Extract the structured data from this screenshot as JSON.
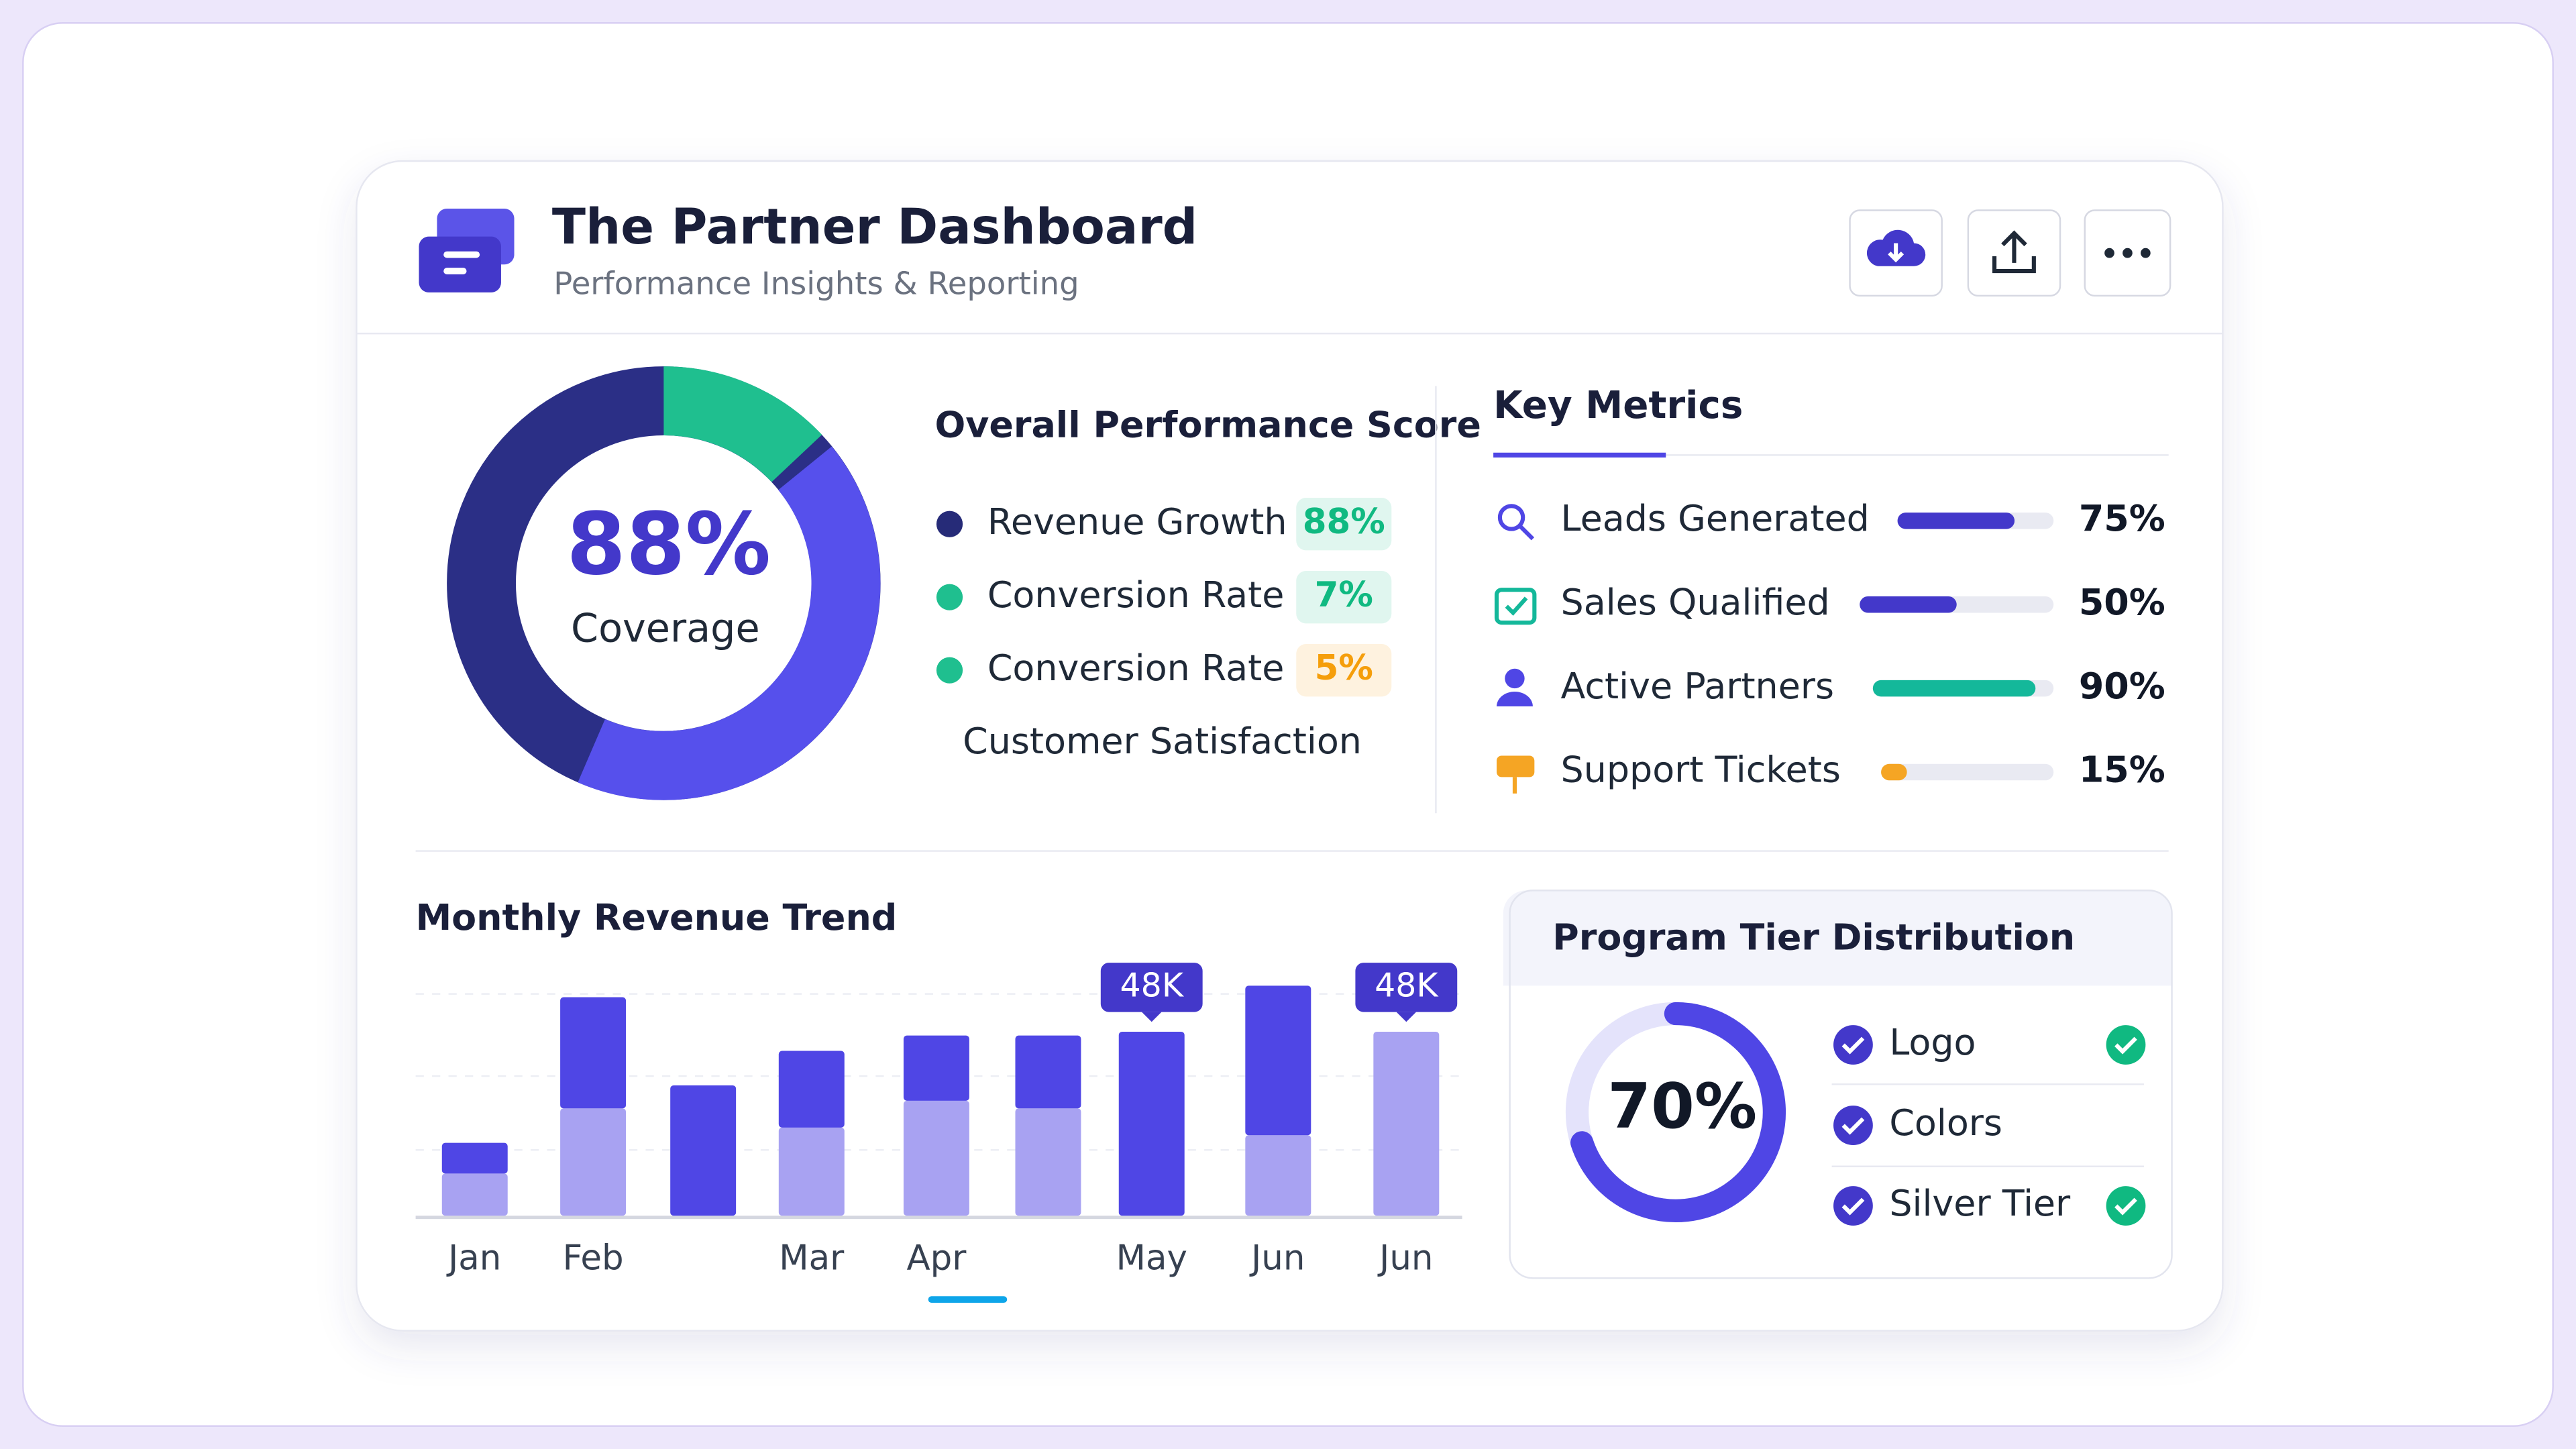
{
  "header": {
    "title": "The Partner Dashboard",
    "subtitle": "Performance Insights & Reporting"
  },
  "performance": {
    "center_value": "88%",
    "center_label": "Coverage",
    "title": "Overall Performance Score",
    "legend": [
      {
        "name": "Revenue Growth",
        "value": "88%",
        "color": "#262b78",
        "badge_color": "#10b981"
      },
      {
        "name": "Conversion Rate",
        "value": "7%",
        "color": "#1fbf8f",
        "badge_color": "#10b981"
      },
      {
        "name": "Conversion Rate",
        "value": "5%",
        "color": "#1fbf8f",
        "badge_color": "#f59e0b"
      },
      {
        "name": "Customer Satisfaction"
      }
    ]
  },
  "key_metrics": {
    "title": "Key Metrics",
    "items": [
      {
        "label": "Leads Generated",
        "value": 75,
        "value_label": "75%",
        "color": "#4338ca"
      },
      {
        "label": "Sales Qualified",
        "value": 50,
        "value_label": "50%",
        "color": "#4338ca"
      },
      {
        "label": "Active Partners",
        "value": 90,
        "value_label": "90%",
        "color": "#14b89a"
      },
      {
        "label": "Support Tickets",
        "value": 15,
        "value_label": "15%",
        "color": "#f5a524"
      }
    ]
  },
  "revenue_trend": {
    "type": "bar",
    "title": "Monthly Revenue Trend",
    "categories": [
      "Jan",
      "Feb",
      null,
      "Mar",
      "Apr",
      null,
      "May",
      "Jun",
      "Jun"
    ],
    "series": [
      {
        "color": "#a8a2f2",
        "values": [
          11,
          28,
          0,
          23,
          30,
          28,
          0,
          21,
          48
        ],
        "value_labels": [
          null,
          null,
          null,
          null,
          null,
          null,
          null,
          null,
          "48K"
        ]
      },
      {
        "color": "#4f46e5",
        "values": [
          8,
          29,
          34,
          20,
          17,
          19,
          48,
          39,
          0
        ],
        "value_labels": [
          null,
          null,
          null,
          null,
          null,
          null,
          "48K",
          null,
          null
        ]
      }
    ]
  },
  "tier": {
    "title": "Program Tier Distribution",
    "value": 70,
    "value_label": "70%",
    "items": [
      {
        "label": "Logo",
        "verified": true
      },
      {
        "label": "Colors",
        "verified": false
      },
      {
        "label": "Silver Tier",
        "verified": true
      }
    ]
  }
}
